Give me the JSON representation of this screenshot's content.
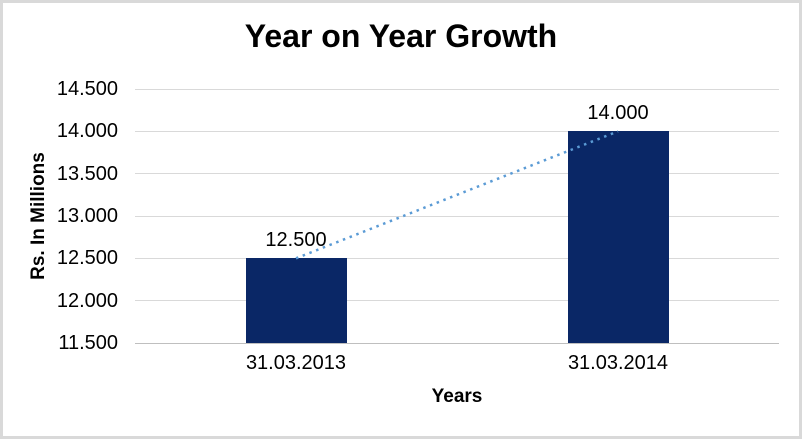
{
  "chart_data": {
    "type": "bar",
    "title": "Year on Year Growth",
    "xlabel": "Years",
    "ylabel": "Rs. In Millions",
    "categories": [
      "31.03.2013",
      "31.03.2014"
    ],
    "values": [
      12.5,
      14.0
    ],
    "data_labels": [
      "12.500",
      "14.000"
    ],
    "ylim": [
      11.5,
      14.5
    ],
    "yticks": [
      {
        "value": 14.5,
        "label": "14.500"
      },
      {
        "value": 14.0,
        "label": "14.000"
      },
      {
        "value": 13.5,
        "label": "13.500"
      },
      {
        "value": 13.0,
        "label": "13.000"
      },
      {
        "value": 12.5,
        "label": "12.500"
      },
      {
        "value": 12.0,
        "label": "12.000"
      },
      {
        "value": 11.5,
        "label": "11.500"
      }
    ],
    "grid": true,
    "legend": "none",
    "trendline": {
      "present": true,
      "style": "dotted"
    },
    "colors": {
      "bar": "#0a2766",
      "trendline": "#5b9bd5",
      "gridline": "#d9d9d9",
      "axis_line": "#bfbfbf",
      "text": "#000000",
      "background": "#ffffff",
      "border": "#d9d9d9"
    }
  }
}
